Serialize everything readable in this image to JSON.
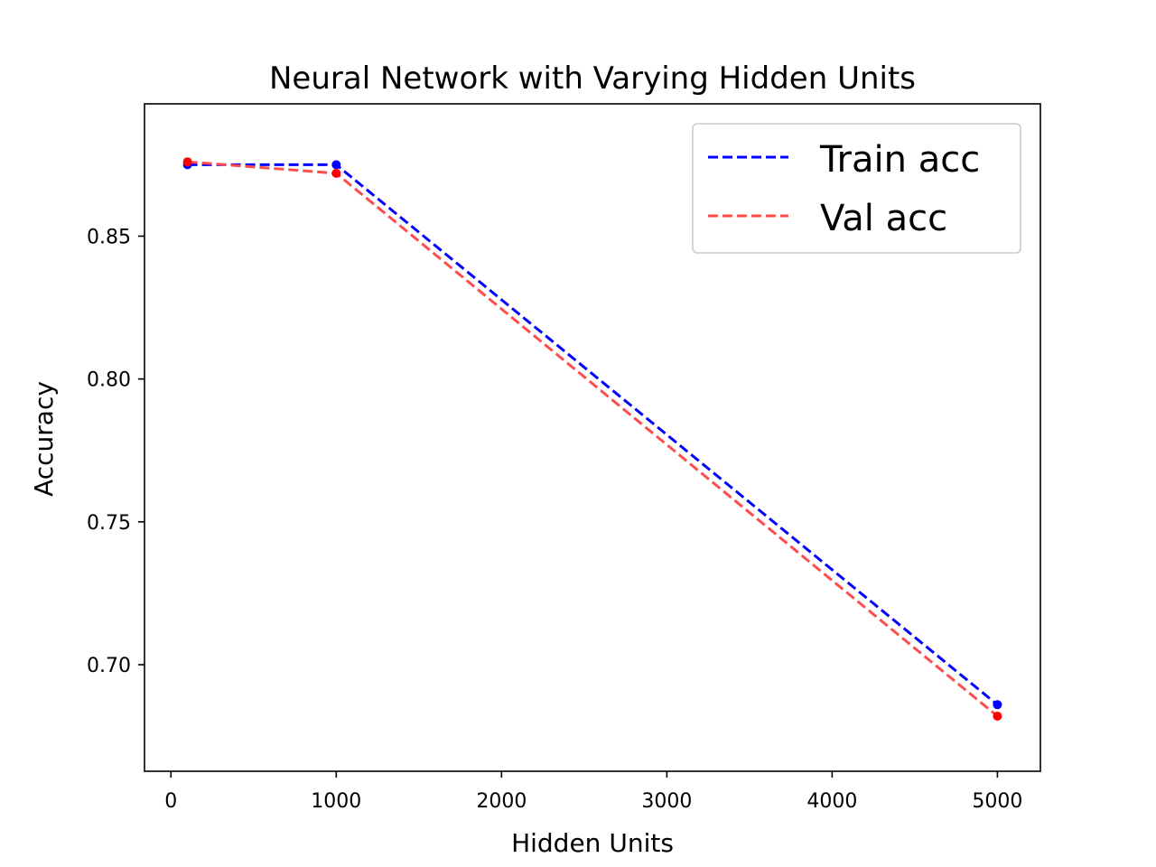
{
  "chart_data": {
    "type": "line",
    "title": "Neural Network with Varying Hidden Units",
    "xlabel": "Hidden Units",
    "ylabel": "Accuracy",
    "xlim": [
      -160,
      5260
    ],
    "ylim": [
      0.6627,
      0.8963
    ],
    "xticks": [
      0,
      1000,
      2000,
      3000,
      4000,
      5000
    ],
    "xtick_labels": [
      "0",
      "1000",
      "2000",
      "3000",
      "4000",
      "5000"
    ],
    "yticks": [
      0.7,
      0.75,
      0.8,
      0.85
    ],
    "ytick_labels": [
      "0.70",
      "0.75",
      "0.80",
      "0.85"
    ],
    "grid": false,
    "legend_position": "upper right",
    "series": [
      {
        "name": "Train acc",
        "color": "#0000ff",
        "linestyle": "dashed",
        "x": [
          100,
          1000,
          5000
        ],
        "y": [
          0.875,
          0.875,
          0.686
        ]
      },
      {
        "name": "Val acc",
        "color": "#ff4c4c",
        "marker_color": "#ff0000",
        "linestyle": "dashed",
        "x": [
          100,
          1000,
          5000
        ],
        "y": [
          0.876,
          0.872,
          0.682
        ]
      }
    ]
  }
}
